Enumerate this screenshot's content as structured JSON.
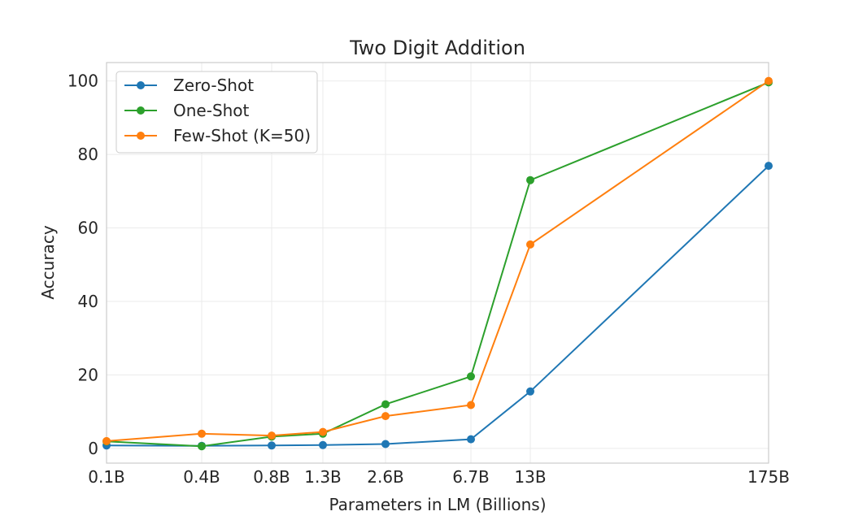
{
  "chart_data": {
    "type": "line",
    "title": "Two Digit Addition",
    "xlabel": "Parameters in LM (Billions)",
    "ylabel": "Accuracy",
    "categories": [
      "0.1B",
      "0.4B",
      "0.8B",
      "1.3B",
      "2.6B",
      "6.7B",
      "13B",
      "175B"
    ],
    "x_positions": [
      0.125,
      0.35,
      0.76,
      1.3,
      2.7,
      6.7,
      13,
      175
    ],
    "x_scale": "sqrt-like (category positions as drawn)",
    "ylim": [
      -4,
      105
    ],
    "yticks": [
      0,
      20,
      40,
      60,
      80,
      100
    ],
    "grid": true,
    "legend_position": "top-left",
    "series": [
      {
        "name": "Zero-Shot",
        "color": "#1f77b4",
        "values": [
          0.8,
          0.7,
          0.8,
          0.9,
          1.2,
          2.5,
          15.5,
          76.9
        ]
      },
      {
        "name": "One-Shot",
        "color": "#2ca02c",
        "values": [
          1.9,
          0.6,
          3.2,
          4.0,
          12.0,
          19.6,
          73.0,
          99.6
        ]
      },
      {
        "name": "Few-Shot (K=50)",
        "color": "#ff7f0e",
        "values": [
          2.0,
          4.0,
          3.5,
          4.5,
          8.8,
          11.8,
          55.5,
          100.0
        ]
      }
    ]
  }
}
